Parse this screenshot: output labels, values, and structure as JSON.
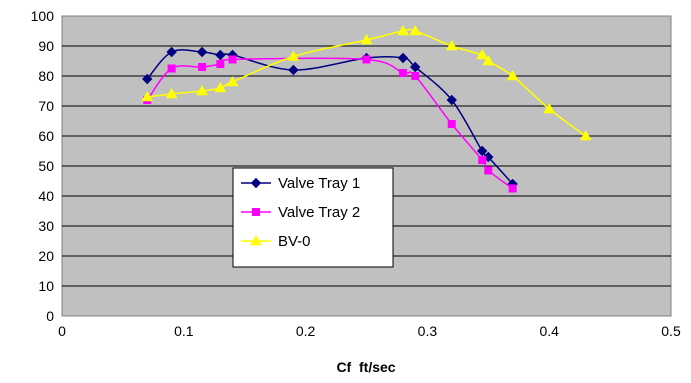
{
  "chart_data": {
    "type": "line",
    "title": "",
    "xlabel": "Cf  ft/sec",
    "ylabel": "",
    "xlim": [
      0,
      0.5
    ],
    "ylim": [
      0,
      100
    ],
    "x_ticks": [
      0,
      0.1,
      0.2,
      0.3,
      0.4,
      0.5
    ],
    "x_tick_labels": [
      "0",
      "0.1",
      "0.2",
      "0.3",
      "0.4",
      "0.5"
    ],
    "y_ticks": [
      0,
      10,
      20,
      30,
      40,
      50,
      60,
      70,
      80,
      90,
      100
    ],
    "y_tick_labels": [
      "0",
      "10",
      "20",
      "30",
      "40",
      "50",
      "60",
      "70",
      "80",
      "90",
      "100"
    ],
    "grid": true,
    "plot_background": "#c0c0c0",
    "legend_placement": "center-left",
    "series": [
      {
        "name": "Valve Tray 1",
        "color": "#000080",
        "marker": "diamond",
        "points": [
          {
            "x": 0.07,
            "y": 79
          },
          {
            "x": 0.09,
            "y": 88
          },
          {
            "x": 0.115,
            "y": 88
          },
          {
            "x": 0.13,
            "y": 87
          },
          {
            "x": 0.14,
            "y": 87
          },
          {
            "x": 0.19,
            "y": 82
          },
          {
            "x": 0.25,
            "y": 86
          },
          {
            "x": 0.28,
            "y": 86
          },
          {
            "x": 0.29,
            "y": 83
          },
          {
            "x": 0.32,
            "y": 72
          },
          {
            "x": 0.345,
            "y": 55
          },
          {
            "x": 0.35,
            "y": 53
          },
          {
            "x": 0.37,
            "y": 44
          }
        ]
      },
      {
        "name": "Valve Tray 2",
        "color": "#ff00ff",
        "marker": "square",
        "points": [
          {
            "x": 0.07,
            "y": 72
          },
          {
            "x": 0.09,
            "y": 82.5
          },
          {
            "x": 0.115,
            "y": 83
          },
          {
            "x": 0.13,
            "y": 84
          },
          {
            "x": 0.14,
            "y": 85.5
          },
          {
            "x": 0.25,
            "y": 85.5
          },
          {
            "x": 0.28,
            "y": 81
          },
          {
            "x": 0.29,
            "y": 80
          },
          {
            "x": 0.32,
            "y": 64
          },
          {
            "x": 0.345,
            "y": 52
          },
          {
            "x": 0.35,
            "y": 48.5
          },
          {
            "x": 0.37,
            "y": 42.5
          }
        ]
      },
      {
        "name": "BV-0",
        "color": "#ffff00",
        "marker": "triangle",
        "points": [
          {
            "x": 0.07,
            "y": 73
          },
          {
            "x": 0.09,
            "y": 74
          },
          {
            "x": 0.115,
            "y": 75
          },
          {
            "x": 0.13,
            "y": 76
          },
          {
            "x": 0.14,
            "y": 78
          },
          {
            "x": 0.19,
            "y": 86.5
          },
          {
            "x": 0.25,
            "y": 92
          },
          {
            "x": 0.28,
            "y": 95
          },
          {
            "x": 0.29,
            "y": 95
          },
          {
            "x": 0.32,
            "y": 90
          },
          {
            "x": 0.345,
            "y": 87
          },
          {
            "x": 0.35,
            "y": 85
          },
          {
            "x": 0.37,
            "y": 80
          },
          {
            "x": 0.4,
            "y": 69
          },
          {
            "x": 0.43,
            "y": 60
          }
        ]
      }
    ]
  }
}
